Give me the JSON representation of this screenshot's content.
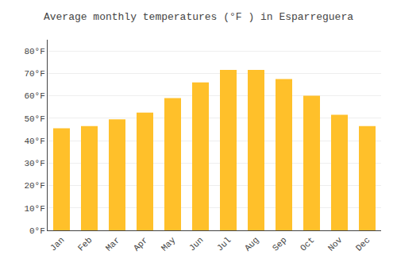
{
  "chart_data": {
    "type": "bar",
    "title": "Average monthly temperatures (°F ) in Esparreguera",
    "categories": [
      "Jan",
      "Feb",
      "Mar",
      "Apr",
      "May",
      "Jun",
      "Jul",
      "Aug",
      "Sep",
      "Oct",
      "Nov",
      "Dec"
    ],
    "values": [
      45.5,
      46.5,
      49.5,
      52.5,
      59.0,
      66.0,
      71.5,
      71.5,
      67.5,
      60.0,
      51.5,
      46.5
    ],
    "color": "#FFC02A",
    "ylim": [
      0,
      85
    ],
    "yticks": [
      {
        "value": 0,
        "label": "0°F"
      },
      {
        "value": 10,
        "label": "10°F"
      },
      {
        "value": 20,
        "label": "20°F"
      },
      {
        "value": 30,
        "label": "30°F"
      },
      {
        "value": 40,
        "label": "40°F"
      },
      {
        "value": 50,
        "label": "50°F"
      },
      {
        "value": 60,
        "label": "60°F"
      },
      {
        "value": 70,
        "label": "70°F"
      },
      {
        "value": 80,
        "label": "80°F"
      }
    ],
    "grid": true
  }
}
